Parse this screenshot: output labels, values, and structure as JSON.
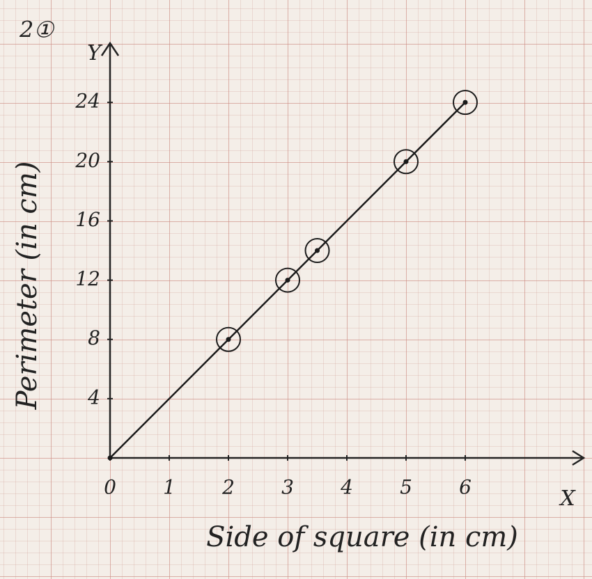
{
  "chart_data": {
    "type": "line",
    "title": "2①",
    "x_axis_name": "X",
    "y_axis_name": "Y",
    "x_label": "Side of square (in cm)",
    "y_label": "Perimeter (in cm)",
    "series": [
      {
        "x": [
          0,
          2,
          3,
          3.5,
          5,
          6
        ],
        "values": [
          0,
          8,
          12,
          14,
          20,
          24
        ],
        "color": "#1a1a1a"
      }
    ],
    "xlim": [
      0,
      8
    ],
    "ylim": [
      0,
      28
    ],
    "xticks": [
      0,
      1,
      2,
      3,
      4,
      5,
      6
    ],
    "yticks": [
      4,
      8,
      12,
      16,
      20,
      24
    ]
  }
}
